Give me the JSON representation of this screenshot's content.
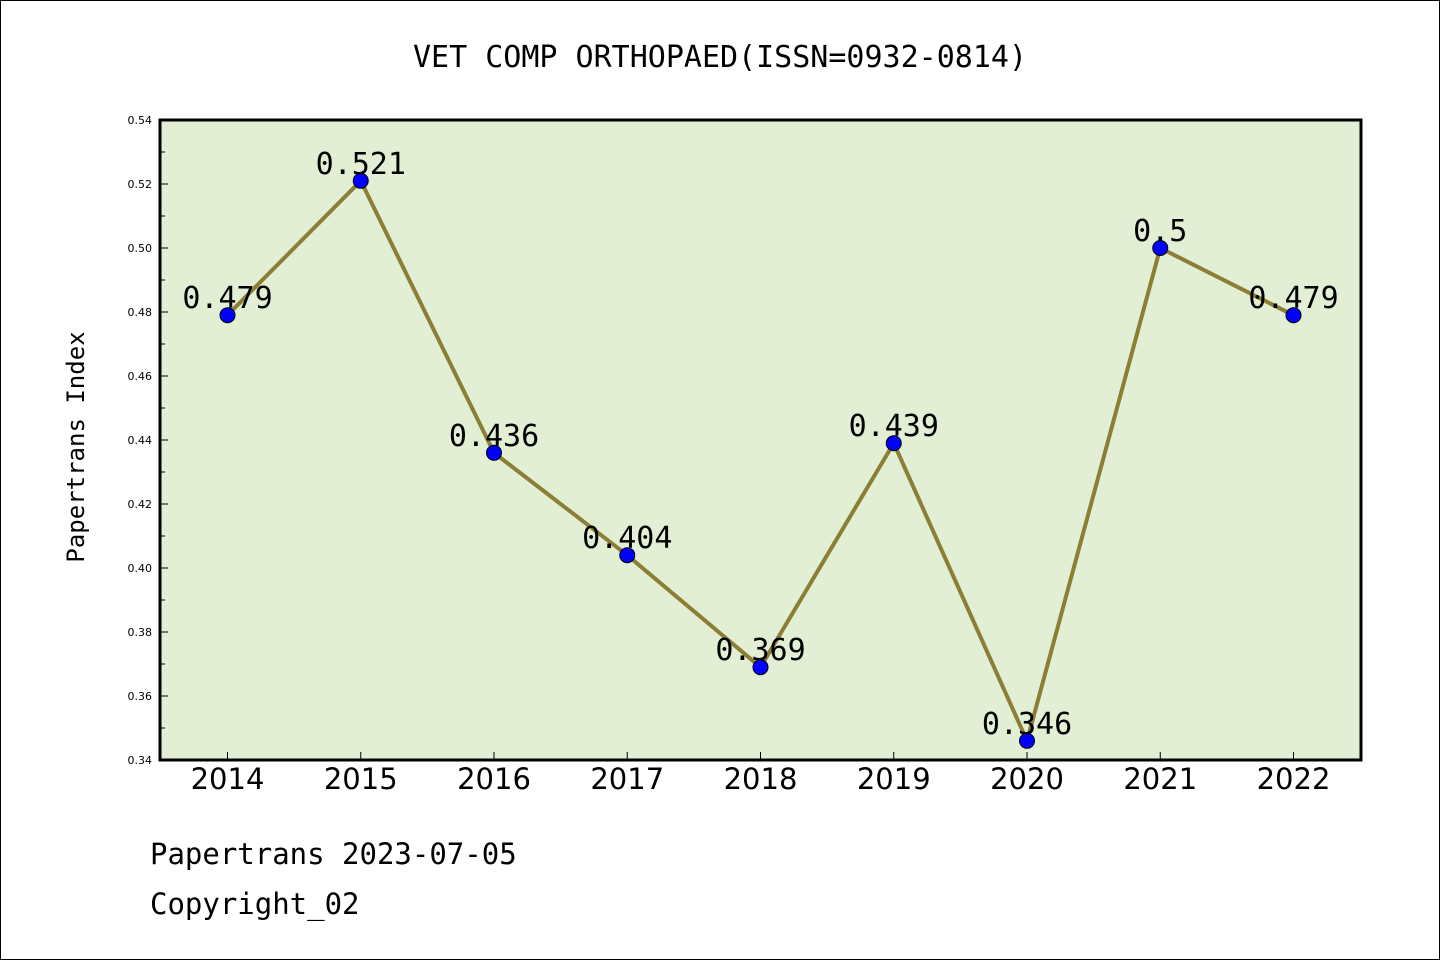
{
  "chart_data": {
    "type": "line",
    "title": "VET COMP ORTHOPAED(ISSN=0932-0814)",
    "ylabel": "Papertrans Index",
    "xlabel": "",
    "categories": [
      "2014",
      "2015",
      "2016",
      "2017",
      "2018",
      "2019",
      "2020",
      "2021",
      "2022"
    ],
    "values": [
      0.479,
      0.521,
      0.436,
      0.404,
      0.369,
      0.439,
      0.346,
      0.5,
      0.479
    ],
    "data_labels": [
      "0.479",
      "0.521",
      "0.436",
      "0.404",
      "0.369",
      "0.439",
      "0.346",
      "0.5",
      "0.479"
    ],
    "ylim": [
      0.34,
      0.54
    ],
    "yticks": [
      "0.34",
      "0.36",
      "0.38",
      "0.40",
      "0.42",
      "0.44",
      "0.46",
      "0.48",
      "0.50",
      "0.52",
      "0.54"
    ],
    "grid": false,
    "legend": "none",
    "colors": {
      "plot_background": "#e2efd5",
      "line": "#8c7e35",
      "marker": "#0000ff"
    }
  },
  "footer": {
    "line1": "Papertrans 2023-07-05",
    "line2": "Copyright_02"
  }
}
